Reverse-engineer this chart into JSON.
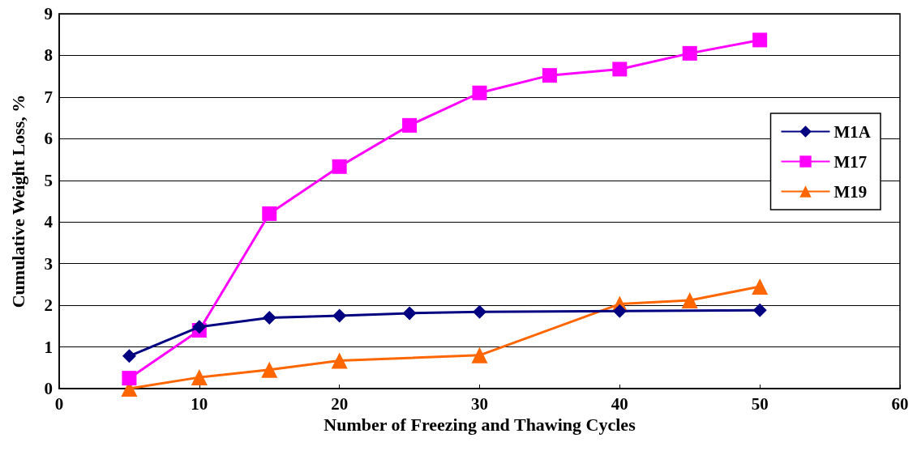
{
  "chart_data": {
    "type": "line",
    "xlabel": "Number of Freezing and Thawing Cycles",
    "ylabel": "Cumulative Weight Loss, %",
    "xlim": [
      0,
      60
    ],
    "xticks": [
      0,
      10,
      20,
      30,
      40,
      50,
      60
    ],
    "ylim": [
      0,
      9
    ],
    "yticks": [
      0,
      1,
      2,
      3,
      4,
      5,
      6,
      7,
      8,
      9
    ],
    "grid": "y",
    "legend": "right",
    "series": [
      {
        "name": "M1A",
        "color": "#000080",
        "marker": "diamond",
        "x": [
          5,
          10,
          15,
          20,
          25,
          30,
          40,
          50
        ],
        "values": [
          0.78,
          1.48,
          1.7,
          1.75,
          1.81,
          1.84,
          1.86,
          1.88
        ]
      },
      {
        "name": "M17",
        "color": "#ff00ff",
        "marker": "square",
        "x": [
          5,
          10,
          15,
          20,
          25,
          30,
          35,
          40,
          45,
          50
        ],
        "values": [
          0.25,
          1.4,
          4.2,
          5.33,
          6.32,
          7.1,
          7.52,
          7.67,
          8.05,
          8.37
        ]
      },
      {
        "name": "M19",
        "color": "#ff6600",
        "marker": "triangle",
        "x": [
          5,
          10,
          15,
          20,
          30,
          40,
          45,
          50
        ],
        "values": [
          0.0,
          0.27,
          0.45,
          0.67,
          0.8,
          2.03,
          2.12,
          2.45
        ]
      }
    ]
  }
}
